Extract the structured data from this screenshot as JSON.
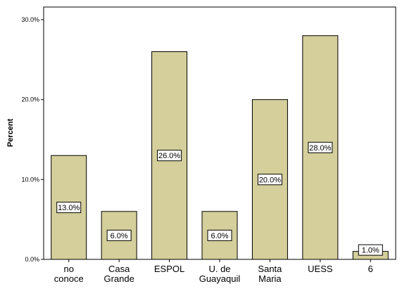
{
  "chart_data": {
    "type": "bar",
    "title": "",
    "xlabel": "",
    "ylabel": "Percent",
    "ylim": [
      0,
      30
    ],
    "yticks": [
      0,
      10,
      20,
      30
    ],
    "ytick_labels": [
      "0.0%",
      "10.0%",
      "20.0%",
      "30.0%"
    ],
    "categories": [
      [
        "no",
        "conoce"
      ],
      [
        "Casa",
        "Grande"
      ],
      [
        "ESPOL"
      ],
      [
        "U. de",
        "Guayaquil"
      ],
      [
        "Santa",
        "Maria"
      ],
      [
        "UESS"
      ],
      [
        "6"
      ]
    ],
    "values": [
      13.0,
      6.0,
      26.0,
      6.0,
      20.0,
      28.0,
      1.0
    ],
    "data_labels": [
      "13.0%",
      "6.0%",
      "26.0%",
      "6.0%",
      "20.0%",
      "28.0%",
      "1.0%"
    ],
    "grid": false,
    "legend": "none",
    "bar_color": "#d4cf9b",
    "bar_edge_color": "#000000"
  }
}
